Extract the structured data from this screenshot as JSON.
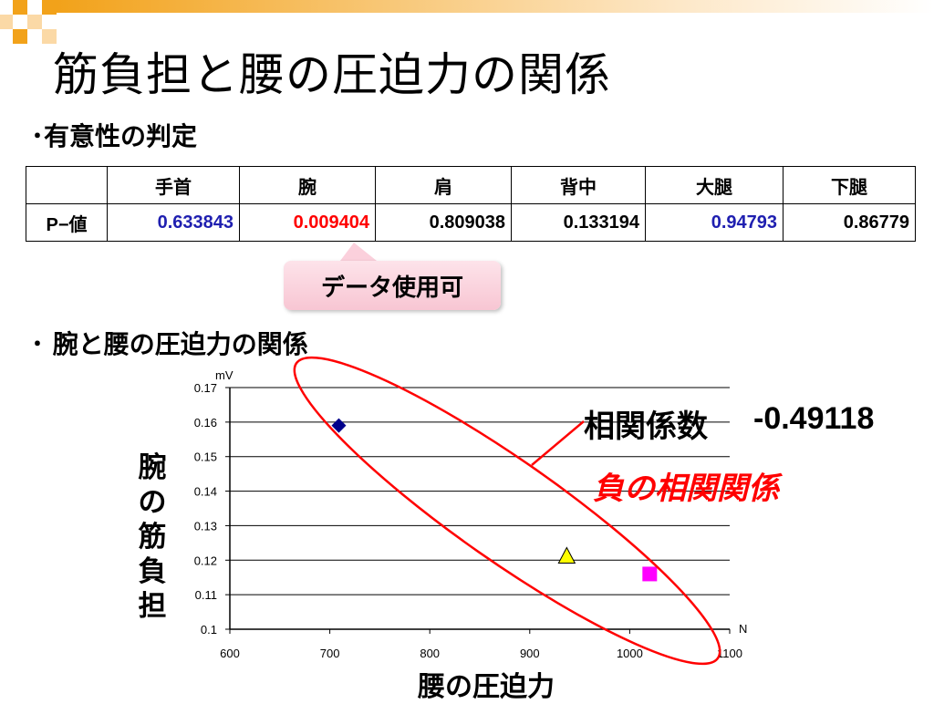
{
  "title": "筋負担と腰の圧迫力の関係",
  "section1": "･有意性の判定",
  "table": {
    "headers": [
      "",
      "手首",
      "腕",
      "肩",
      "背中",
      "大腿",
      "下腿"
    ],
    "row_label": "P−値",
    "values": [
      "0.633843",
      "0.009404",
      "0.809038",
      "0.133194",
      "0.94793",
      "0.86779"
    ],
    "value_colors": [
      "#1f1fb0",
      "#ff0000",
      "#000000",
      "#000000",
      "#1f1fb0",
      "#000000"
    ]
  },
  "note": "データ使用可",
  "section2": "･ 腕と腰の圧迫力の関係",
  "annotation": {
    "corr_label": "相関係数",
    "corr_value": "-0.49118",
    "neg_label": "負の相関関係"
  },
  "chart_data": {
    "type": "scatter",
    "xlabel": "腰の圧迫力",
    "ylabel": "腕の筋負担",
    "x_unit": "N",
    "y_unit": "mV",
    "xlim": [
      600,
      1100
    ],
    "ylim": [
      0.1,
      0.17
    ],
    "x_ticks": [
      "600",
      "700",
      "800",
      "900",
      "1000",
      "1100"
    ],
    "y_ticks": [
      "0.1",
      "0.11",
      "0.12",
      "0.13",
      "0.14",
      "0.15",
      "0.16",
      "0.17"
    ],
    "grid": "horizontal",
    "points": [
      {
        "x": 709,
        "y": 0.159,
        "marker": "diamond",
        "color": "#00008b"
      },
      {
        "x": 937,
        "y": 0.121,
        "marker": "triangle",
        "color": "#ffff00"
      },
      {
        "x": 1020,
        "y": 0.116,
        "marker": "square",
        "color": "#ff00ff"
      }
    ]
  }
}
